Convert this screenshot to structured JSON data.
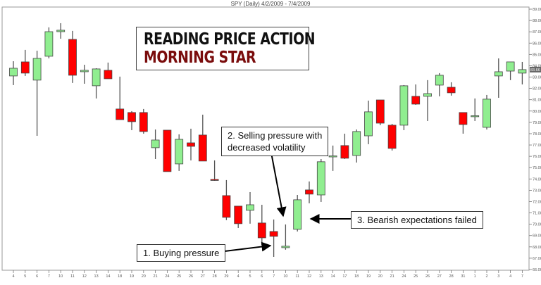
{
  "header": {
    "title": "SPY (Daily) 4/2/2009 - 7/4/2009"
  },
  "title_box": {
    "line1": "READING PRICE ACTION",
    "line2": "MORNING STAR",
    "line2_color": "#7a0c0c"
  },
  "annotations": [
    {
      "label": "1. Buying pressure"
    },
    {
      "label": "2. Selling  pressure with",
      "label2": "decreased volatility"
    },
    {
      "label": "3. Bearish expectations failed"
    }
  ],
  "colors": {
    "up": "#90ee90",
    "down": "#ff0000",
    "wick": "#555555"
  },
  "chart_data": {
    "type": "candlestick",
    "title": "SPY (Daily) 4/2/2009 - 7/4/2009",
    "ylim": [
      66,
      89
    ],
    "y_ticks": [
      "66.00",
      "67.00",
      "68.00",
      "69.00",
      "70.00",
      "71.00",
      "72.00",
      "73.00",
      "74.00",
      "75.00",
      "76.00",
      "77.00",
      "78.00",
      "79.00",
      "80.00",
      "81.00",
      "82.00",
      "83.00",
      "84.00",
      "85.00",
      "86.00",
      "87.00",
      "88.00",
      "89.00"
    ],
    "y_axis_position": "right",
    "last_price_label": "83.66",
    "grid": false,
    "candles": [
      {
        "date": "4",
        "open": 83.1,
        "high": 84.4,
        "low": 82.29,
        "close": 83.78
      },
      {
        "date": "5",
        "open": 84.34,
        "high": 85.4,
        "low": 83.1,
        "close": 83.35
      },
      {
        "date": "6",
        "open": 82.73,
        "high": 85.33,
        "low": 77.81,
        "close": 84.65
      },
      {
        "date": "7",
        "open": 84.84,
        "high": 87.39,
        "low": 84.65,
        "close": 87.01
      },
      {
        "date": "10",
        "open": 87.01,
        "high": 87.76,
        "low": 86.39,
        "close": 87.14
      },
      {
        "date": "11",
        "open": 86.33,
        "high": 87.08,
        "low": 82.48,
        "close": 83.16
      },
      {
        "date": "12",
        "open": 83.47,
        "high": 84.09,
        "low": 82.41,
        "close": 83.6
      },
      {
        "date": "13",
        "open": 82.23,
        "high": 83.78,
        "low": 81.11,
        "close": 83.72
      },
      {
        "date": "14",
        "open": 83.6,
        "high": 84.28,
        "low": 82.85,
        "close": 82.85
      },
      {
        "date": "18",
        "open": 80.18,
        "high": 83.04,
        "low": 79.24,
        "close": 79.24
      },
      {
        "date": "19",
        "open": 79.87,
        "high": 79.99,
        "low": 78.31,
        "close": 79.06
      },
      {
        "date": "20",
        "open": 79.87,
        "high": 80.18,
        "low": 78.0,
        "close": 78.19
      },
      {
        "date": "21",
        "open": 76.76,
        "high": 78.37,
        "low": 75.76,
        "close": 77.44
      },
      {
        "date": "24",
        "open": 78.31,
        "high": 78.31,
        "low": 74.65,
        "close": 74.65
      },
      {
        "date": "25",
        "open": 75.33,
        "high": 77.94,
        "low": 74.71,
        "close": 77.5
      },
      {
        "date": "26",
        "open": 77.19,
        "high": 78.44,
        "low": 75.64,
        "close": 76.88
      },
      {
        "date": "27",
        "open": 77.88,
        "high": 79.68,
        "low": 75.58,
        "close": 75.58
      },
      {
        "date": "28",
        "open": 73.96,
        "high": 75.64,
        "low": 73.84,
        "close": 73.9
      },
      {
        "date": "29",
        "open": 72.53,
        "high": 73.9,
        "low": 70.36,
        "close": 70.61
      },
      {
        "date": "4",
        "open": 71.6,
        "high": 71.6,
        "low": 69.67,
        "close": 70.05
      },
      {
        "date": "5",
        "open": 71.23,
        "high": 72.84,
        "low": 70.05,
        "close": 71.72
      },
      {
        "date": "6",
        "open": 70.11,
        "high": 71.72,
        "low": 68.18,
        "close": 68.8
      },
      {
        "date": "7",
        "open": 69.36,
        "high": 70.42,
        "low": 67.12,
        "close": 68.93
      },
      {
        "date": "10",
        "open": 67.93,
        "high": 69.98,
        "low": 67.75,
        "close": 68.06
      },
      {
        "date": "11",
        "open": 69.55,
        "high": 72.59,
        "low": 69.36,
        "close": 72.16
      },
      {
        "date": "12",
        "open": 73.03,
        "high": 73.78,
        "low": 71.85,
        "close": 72.66
      },
      {
        "date": "13",
        "open": 72.59,
        "high": 75.76,
        "low": 71.97,
        "close": 75.52
      },
      {
        "date": "14",
        "open": 75.98,
        "high": 76.95,
        "low": 74.71,
        "close": 76.04
      },
      {
        "date": "17",
        "open": 76.95,
        "high": 78.0,
        "low": 75.76,
        "close": 75.83
      },
      {
        "date": "18",
        "open": 76.07,
        "high": 78.37,
        "low": 75.45,
        "close": 78.19
      },
      {
        "date": "19",
        "open": 77.81,
        "high": 80.92,
        "low": 77.07,
        "close": 79.93
      },
      {
        "date": "20",
        "open": 80.98,
        "high": 80.98,
        "low": 78.75,
        "close": 78.93
      },
      {
        "date": "21",
        "open": 78.75,
        "high": 78.87,
        "low": 76.51,
        "close": 76.7
      },
      {
        "date": "24",
        "open": 78.75,
        "high": 82.29,
        "low": 78.31,
        "close": 82.23
      },
      {
        "date": "25",
        "open": 81.3,
        "high": 82.35,
        "low": 80.55,
        "close": 80.61
      },
      {
        "date": "26",
        "open": 81.3,
        "high": 82.73,
        "low": 79.12,
        "close": 81.54
      },
      {
        "date": "27",
        "open": 82.29,
        "high": 83.35,
        "low": 81.3,
        "close": 83.16
      },
      {
        "date": "28",
        "open": 82.1,
        "high": 82.54,
        "low": 81.36,
        "close": 81.61
      },
      {
        "date": "31",
        "open": 79.87,
        "high": 79.87,
        "low": 78.0,
        "close": 78.81
      },
      {
        "date": "1",
        "open": 79.53,
        "high": 81.11,
        "low": 79.12,
        "close": 79.59
      },
      {
        "date": "2",
        "open": 78.56,
        "high": 81.42,
        "low": 78.37,
        "close": 81.05
      },
      {
        "date": "3",
        "open": 83.1,
        "high": 84.65,
        "low": 81.17,
        "close": 83.47
      },
      {
        "date": "4",
        "open": 83.53,
        "high": 84.34,
        "low": 82.73,
        "close": 84.34
      },
      {
        "date": "7",
        "open": 83.35,
        "high": 84.34,
        "low": 82.35,
        "close": 83.66
      }
    ]
  }
}
